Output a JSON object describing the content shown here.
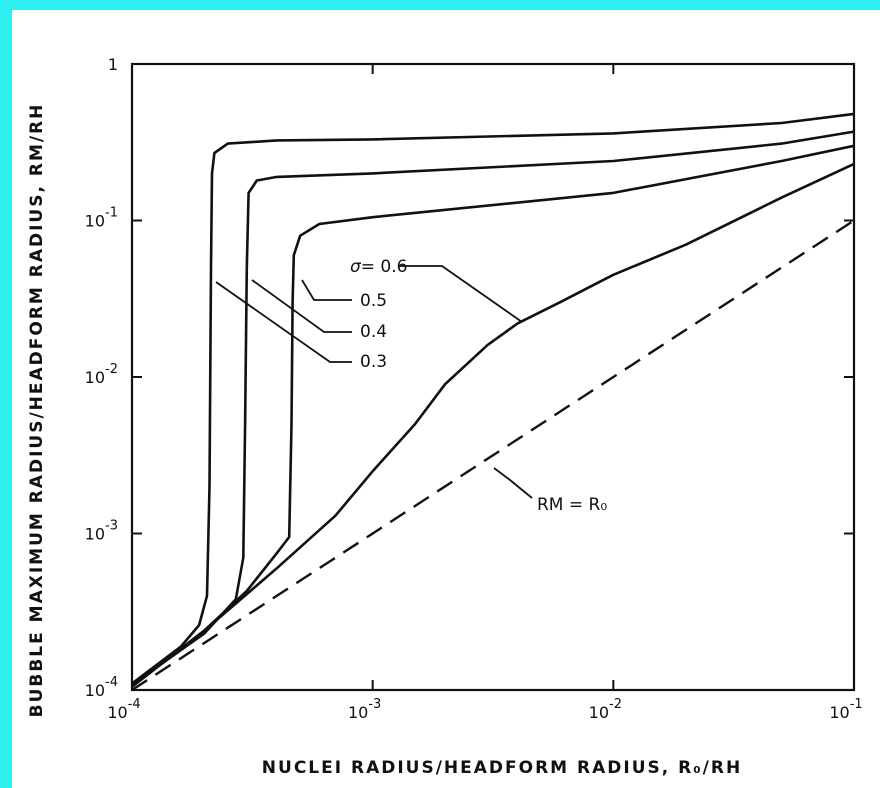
{
  "colors": {
    "background": "#2EF0F0",
    "frame": "#ffffff",
    "ink": "#111111"
  },
  "chart_data": {
    "type": "line",
    "title": "",
    "xlabel": "NUCLEI RADIUS/HEADFORM RADIUS, R₀/RH",
    "ylabel": "BUBBLE MAXIMUM RADIUS/HEADFORM RADIUS, RM/RH",
    "xscale": "log",
    "yscale": "log",
    "xlim": [
      0.0001,
      0.1
    ],
    "ylim": [
      0.0001,
      1
    ],
    "x_ticks": [
      {
        "value": 0.0001,
        "base": "10",
        "exp": "-4"
      },
      {
        "value": 0.001,
        "base": "10",
        "exp": "-3"
      },
      {
        "value": 0.01,
        "base": "10",
        "exp": "-2"
      },
      {
        "value": 0.1,
        "base": "10",
        "exp": "-1"
      }
    ],
    "y_ticks": [
      {
        "value": 1,
        "base": "1",
        "exp": ""
      },
      {
        "value": 0.1,
        "base": "10",
        "exp": "-1"
      },
      {
        "value": 0.01,
        "base": "10",
        "exp": "-2"
      },
      {
        "value": 0.001,
        "base": "10",
        "exp": "-3"
      },
      {
        "value": 0.0001,
        "base": "10",
        "exp": "-4"
      }
    ],
    "grid": false,
    "series": [
      {
        "name": "0.3",
        "style": "solid",
        "points": [
          [
            0.0001,
            0.00011
          ],
          [
            0.00016,
            0.00019
          ],
          [
            0.00019,
            0.00026
          ],
          [
            0.000205,
            0.0004
          ],
          [
            0.00021,
            0.002
          ],
          [
            0.000213,
            0.05
          ],
          [
            0.000215,
            0.2
          ],
          [
            0.00022,
            0.27
          ],
          [
            0.00025,
            0.31
          ],
          [
            0.0004,
            0.325
          ],
          [
            0.001,
            0.33
          ],
          [
            0.01,
            0.36
          ],
          [
            0.05,
            0.42
          ],
          [
            0.1,
            0.48
          ]
        ]
      },
      {
        "name": "0.4",
        "style": "solid",
        "points": [
          [
            0.0001,
            0.000108
          ],
          [
            0.0002,
            0.00023
          ],
          [
            0.00027,
            0.00038
          ],
          [
            0.00029,
            0.0007
          ],
          [
            0.000295,
            0.005
          ],
          [
            0.0003,
            0.05
          ],
          [
            0.000305,
            0.15
          ],
          [
            0.00033,
            0.18
          ],
          [
            0.0004,
            0.19
          ],
          [
            0.001,
            0.2
          ],
          [
            0.01,
            0.24
          ],
          [
            0.05,
            0.31
          ],
          [
            0.1,
            0.37
          ]
        ]
      },
      {
        "name": "0.5",
        "style": "solid",
        "points": [
          [
            0.0001,
            0.000105
          ],
          [
            0.0002,
            0.00024
          ],
          [
            0.0003,
            0.00043
          ],
          [
            0.0004,
            0.00075
          ],
          [
            0.00045,
            0.00095
          ],
          [
            0.00046,
            0.005
          ],
          [
            0.000465,
            0.03
          ],
          [
            0.00047,
            0.06
          ],
          [
            0.0005,
            0.08
          ],
          [
            0.0006,
            0.095
          ],
          [
            0.001,
            0.105
          ],
          [
            0.01,
            0.15
          ],
          [
            0.05,
            0.24
          ],
          [
            0.1,
            0.3
          ]
        ]
      },
      {
        "name": "σ = 0.6",
        "style": "solid",
        "points": [
          [
            0.0001,
            0.000105
          ],
          [
            0.0002,
            0.00024
          ],
          [
            0.0004,
            0.0006
          ],
          [
            0.0007,
            0.0013
          ],
          [
            0.001,
            0.0025
          ],
          [
            0.0015,
            0.005
          ],
          [
            0.002,
            0.009
          ],
          [
            0.003,
            0.016
          ],
          [
            0.004,
            0.022
          ],
          [
            0.006,
            0.03
          ],
          [
            0.01,
            0.045
          ],
          [
            0.02,
            0.07
          ],
          [
            0.05,
            0.14
          ],
          [
            0.1,
            0.23
          ]
        ]
      },
      {
        "name": "RM = R₀",
        "style": "dashed",
        "points": [
          [
            0.0001,
            0.0001
          ],
          [
            0.1,
            0.1
          ]
        ]
      }
    ],
    "annotations": [
      {
        "id": "sigma06",
        "prefix": "σ",
        "text": "= 0.6",
        "series": "σ = 0.6"
      },
      {
        "id": "s05",
        "text": "0.5",
        "series": "0.5"
      },
      {
        "id": "s04",
        "text": "0.4",
        "series": "0.4"
      },
      {
        "id": "s03",
        "text": "0.3",
        "series": "0.3"
      },
      {
        "id": "rm",
        "text": "RM = R₀",
        "series": "RM = R₀"
      }
    ]
  }
}
